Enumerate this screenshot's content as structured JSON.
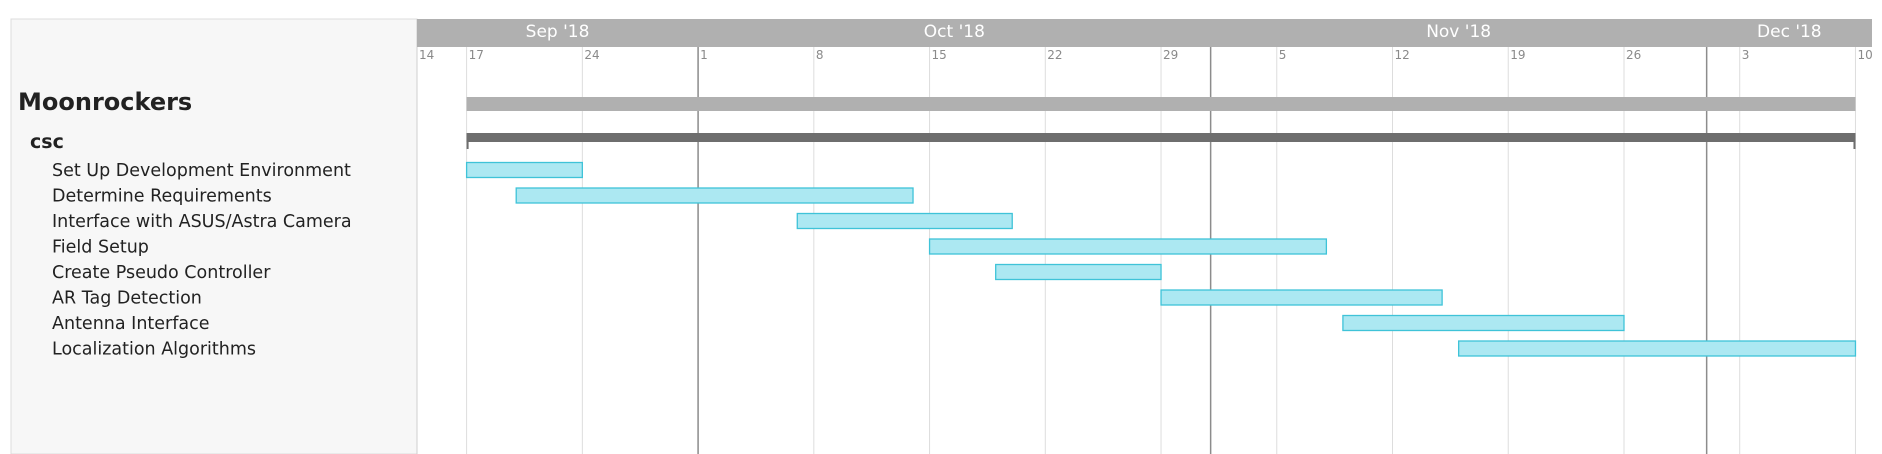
{
  "project": {
    "title": "Moonrockers"
  },
  "group": {
    "title": "csc"
  },
  "colors": {
    "header_bg": "#b0b0b0",
    "panel_bg": "#f7f7f7",
    "task_fill": "#ace8f2",
    "task_stroke": "#3fc3d8",
    "project_bar": "#b0b0b0",
    "group_bar": "#6e6e6e",
    "month_line": "#8c8c8c",
    "week_line": "#dddddd"
  },
  "timeline": {
    "months": [
      {
        "label": "Sep '18",
        "start": "2018-09-14",
        "end": "2018-10-01"
      },
      {
        "label": "Oct '18",
        "start": "2018-10-01",
        "end": "2018-11-01"
      },
      {
        "label": "Nov '18",
        "start": "2018-11-01",
        "end": "2018-12-01"
      },
      {
        "label": "Dec '18",
        "start": "2018-12-01",
        "end": "2018-12-11"
      }
    ],
    "ticks": [
      {
        "label": "14",
        "date": "2018-09-14"
      },
      {
        "label": "17",
        "date": "2018-09-17"
      },
      {
        "label": "24",
        "date": "2018-09-24"
      },
      {
        "label": "1",
        "date": "2018-10-01"
      },
      {
        "label": "8",
        "date": "2018-10-08"
      },
      {
        "label": "15",
        "date": "2018-10-15"
      },
      {
        "label": "22",
        "date": "2018-10-22"
      },
      {
        "label": "29",
        "date": "2018-10-29"
      },
      {
        "label": "5",
        "date": "2018-11-05"
      },
      {
        "label": "12",
        "date": "2018-11-12"
      },
      {
        "label": "19",
        "date": "2018-11-19"
      },
      {
        "label": "26",
        "date": "2018-11-26"
      },
      {
        "label": "3",
        "date": "2018-12-03"
      },
      {
        "label": "10",
        "date": "2018-12-10"
      }
    ],
    "month_boundaries": [
      "2018-10-01",
      "2018-11-01",
      "2018-12-01"
    ]
  },
  "chart_data": {
    "type": "gantt",
    "xlim": [
      "2018-09-14",
      "2018-12-11"
    ],
    "project": {
      "name": "Moonrockers",
      "start": "2018-09-17",
      "end": "2018-12-10"
    },
    "groups": [
      {
        "name": "csc",
        "start": "2018-09-17",
        "end": "2018-12-10"
      }
    ],
    "tasks": [
      {
        "name": "Set Up Development Environment",
        "start": "2018-09-17",
        "end": "2018-09-24"
      },
      {
        "name": "Determine Requirements",
        "start": "2018-09-20",
        "end": "2018-10-14"
      },
      {
        "name": "Interface with ASUS/Astra Camera",
        "start": "2018-10-07",
        "end": "2018-10-20"
      },
      {
        "name": "Field Setup",
        "start": "2018-10-15",
        "end": "2018-11-08"
      },
      {
        "name": "Create Pseudo Controller",
        "start": "2018-10-19",
        "end": "2018-10-29"
      },
      {
        "name": "AR Tag Detection",
        "start": "2018-10-29",
        "end": "2018-11-15"
      },
      {
        "name": "Antenna Interface",
        "start": "2018-11-09",
        "end": "2018-11-26"
      },
      {
        "name": "Localization Algorithms",
        "start": "2018-11-16",
        "end": "2018-12-10"
      }
    ],
    "grid": true
  }
}
